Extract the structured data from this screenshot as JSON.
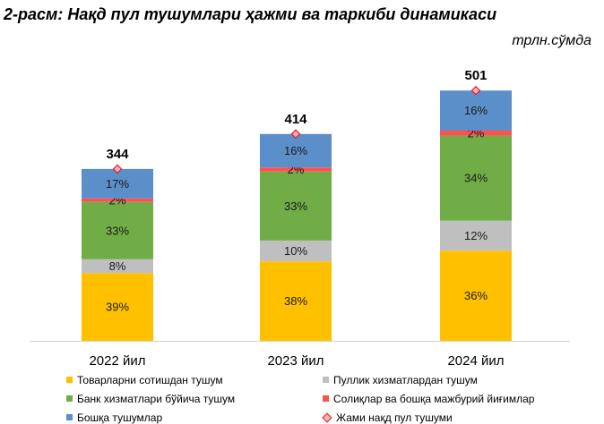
{
  "title": "2-расм: Нақд пул тушумлари ҳажми ва таркиби динамикаси",
  "unit": "трлн.сўмда",
  "colors": {
    "goods": "#ffc000",
    "services": "#bfbfbf",
    "bank": "#70ad47",
    "taxes": "#ff5050",
    "other": "#5b8fc9",
    "total_marker": "#e8192c"
  },
  "chart_data": {
    "type": "bar",
    "stacked": true,
    "categories": [
      "2022 йил",
      "2023 йил",
      "2024 йил"
    ],
    "series": [
      {
        "name": "Товарларни сотишдан тушум",
        "key": "goods",
        "values": [
          39,
          38,
          36
        ],
        "labels": [
          "39%",
          "38%",
          "36%"
        ]
      },
      {
        "name": "Пуллик хизматлардан тушум",
        "key": "services",
        "values": [
          8,
          10,
          12
        ],
        "labels": [
          "8%",
          "10%",
          "12%"
        ]
      },
      {
        "name": "Банк хизматлари бўйича тушум",
        "key": "bank",
        "values": [
          33,
          33,
          34
        ],
        "labels": [
          "33%",
          "33%",
          "34%"
        ]
      },
      {
        "name": "Солиқлар ва бошқа мажбурий йиғимлар",
        "key": "taxes",
        "values": [
          2,
          2,
          2
        ],
        "labels": [
          "2%",
          "2%",
          "2%"
        ]
      },
      {
        "name": "Бошқа тушумлар",
        "key": "other",
        "values": [
          17,
          16,
          16
        ],
        "labels": [
          "17%",
          "16%",
          "16%"
        ]
      }
    ],
    "totals": {
      "name": "Жами нақд пул тушуми",
      "values": [
        344,
        414,
        501
      ],
      "labels": [
        "344",
        "414",
        "501"
      ]
    },
    "legend_position": "bottom",
    "grid": false
  },
  "legend": [
    {
      "label": "Товарларни сотишдан тушум",
      "key": "goods",
      "marker": "square"
    },
    {
      "label": "Пуллик хизматлардан тушум",
      "key": "services",
      "marker": "square"
    },
    {
      "label": "Банк хизматлари бўйича тушум",
      "key": "bank",
      "marker": "square"
    },
    {
      "label": "Солиқлар ва бошқа мажбурий йиғимлар",
      "key": "taxes",
      "marker": "square"
    },
    {
      "label": "Бошқа тушумлар",
      "key": "other",
      "marker": "square"
    },
    {
      "label": "Жами нақд пул тушуми",
      "key": "total_marker",
      "marker": "diamond"
    }
  ]
}
